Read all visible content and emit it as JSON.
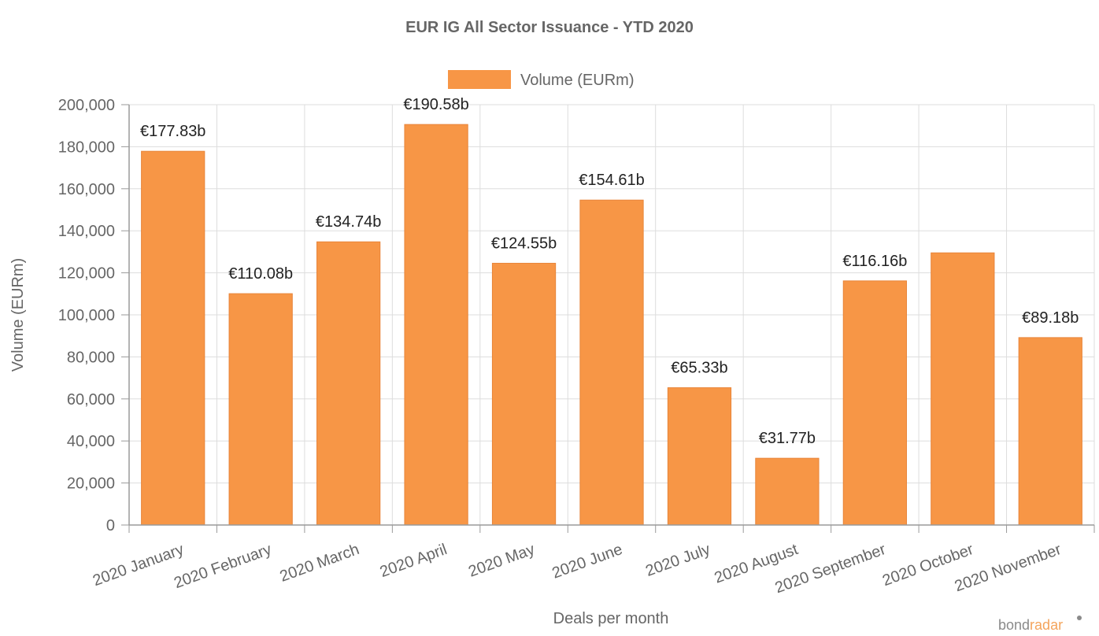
{
  "chart_data": {
    "type": "bar",
    "title": "EUR IG All Sector Issuance - YTD 2020",
    "xlabel": "Deals per month",
    "ylabel": "Volume (EURm)",
    "legend": {
      "position": "top",
      "entries": [
        "Volume (EURm)"
      ]
    },
    "grid": true,
    "ylim": [
      0,
      200000
    ],
    "y_ticks": [
      0,
      20000,
      40000,
      60000,
      80000,
      100000,
      120000,
      140000,
      160000,
      180000,
      200000
    ],
    "y_tick_labels": [
      "0",
      "20,000",
      "40,000",
      "60,000",
      "80,000",
      "100,000",
      "120,000",
      "140,000",
      "160,000",
      "180,000",
      "200,000"
    ],
    "categories": [
      "2020 January",
      "2020 February",
      "2020 March",
      "2020 April",
      "2020 May",
      "2020 June",
      "2020 July",
      "2020 August",
      "2020 September",
      "2020 October",
      "2020 November"
    ],
    "series": [
      {
        "name": "Volume (EURm)",
        "color": "#f79646",
        "values": [
          177830,
          110080,
          134740,
          190580,
          124550,
          154610,
          65330,
          31770,
          116160,
          129500,
          89180
        ],
        "data_labels": [
          "€177.83b",
          "€110.08b",
          "€134.74b",
          "€190.58b",
          "€124.55b",
          "€154.61b",
          "€65.33b",
          "€31.77b",
          "€116.16b",
          "",
          "€89.18b"
        ]
      }
    ]
  },
  "branding": {
    "part1": "bond",
    "part2": "radar"
  },
  "colors": {
    "bar": "#f79646",
    "bar_border": "#e8853a",
    "grid": "#dddddd",
    "axis": "#9a9a9a",
    "text": "#666666"
  }
}
